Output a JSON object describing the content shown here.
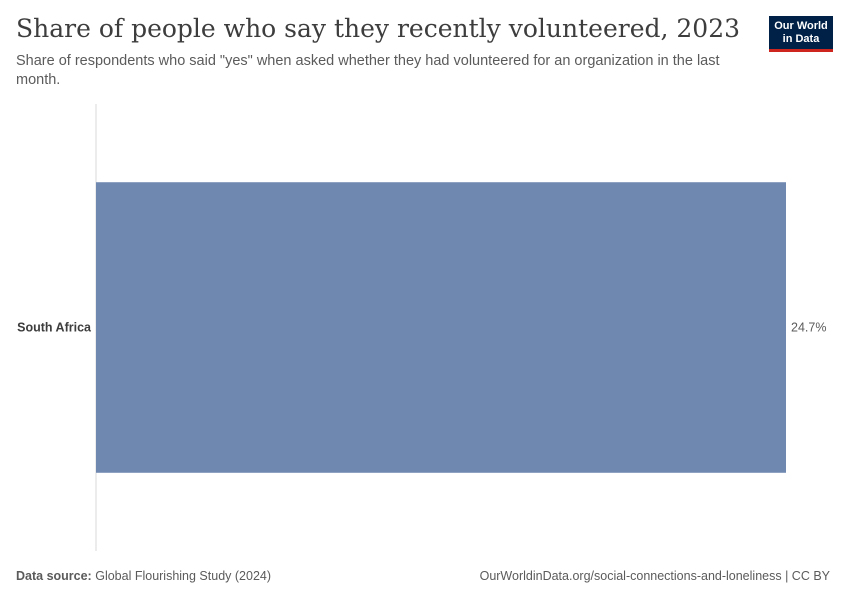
{
  "header": {
    "title": "Share of people who say they recently volunteered, 2023",
    "subtitle": "Share of respondents who said \"yes\" when asked whether they had volunteered for an organization in the last month.",
    "logo_line1": "Our World",
    "logo_line2": "in Data"
  },
  "footer": {
    "source_label": "Data source:",
    "source_text": "Global Flourishing Study (2024)",
    "url_text": "OurWorldinData.org/social-connections-and-loneliness | CC BY"
  },
  "colors": {
    "bar": "#6f88b0",
    "axis": "#d9d9d9",
    "text": "#5b5b5b",
    "label": "#3d3d3d",
    "logo_bg": "#002147",
    "logo_accent": "#ce261e"
  },
  "chart_data": {
    "type": "bar",
    "orientation": "horizontal",
    "categories": [
      "South Africa"
    ],
    "values": [
      24.7
    ],
    "value_labels": [
      "24.7%"
    ],
    "unit": "%",
    "xlim": [
      0,
      24.7
    ]
  }
}
